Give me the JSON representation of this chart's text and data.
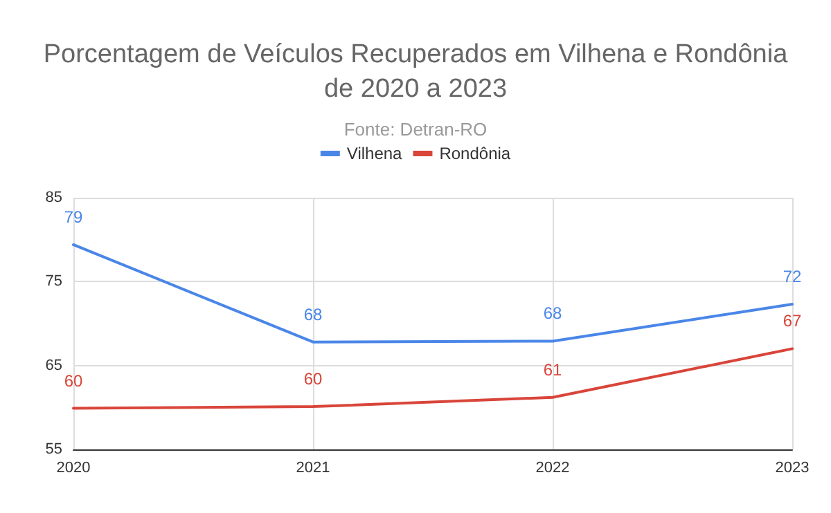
{
  "chart_data": {
    "type": "line",
    "title": "Porcentagem de Veículos Recuperados em Vilhena e Rondônia\nde 2020 a 2023",
    "subtitle": "Fonte: Detran-RO",
    "categories": [
      "2020",
      "2021",
      "2022",
      "2023"
    ],
    "series": [
      {
        "name": "Vilhena",
        "color": "#4a86e8",
        "values": [
          79.4,
          67.8,
          67.9,
          72.3
        ],
        "value_labels": [
          "79",
          "68",
          "68",
          "72"
        ]
      },
      {
        "name": "Rondônia",
        "color": "#d9453a",
        "values": [
          59.9,
          60.1,
          61.2,
          67.0
        ],
        "value_labels": [
          "60",
          "60",
          "61",
          "67"
        ]
      }
    ],
    "ylim": [
      55,
      85
    ],
    "yticks": [
      55,
      65,
      75,
      85
    ],
    "grid": true,
    "legend": "top",
    "marker": "none",
    "line_style": "solid"
  }
}
